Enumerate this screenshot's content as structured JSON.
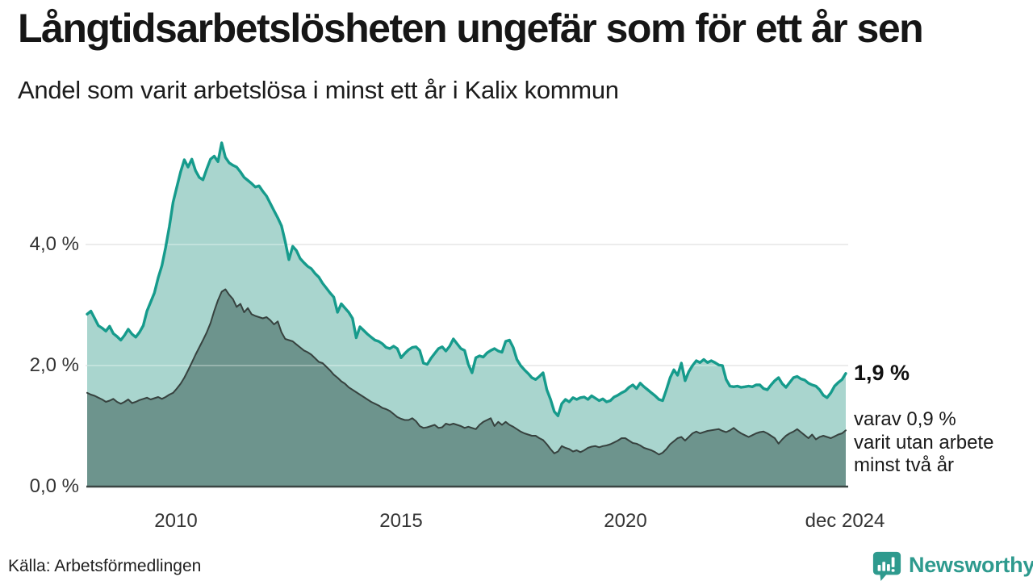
{
  "header": {
    "title": "Långtidsarbetslösheten ungefär som för ett år sen",
    "subtitle": "Andel som varit arbetslösa i minst ett år i Kalix kommun"
  },
  "annotation": {
    "value_label": "1,9 %",
    "detail_lines": [
      "varav 0,9 %",
      "varit utan arbete",
      "minst två år"
    ]
  },
  "source_note": "Källa: Arbetsförmedlingen",
  "logo": {
    "wordmark": "Newsworthy",
    "icon": "chart-speech-bubble-icon",
    "color": "#2e9a8e"
  },
  "chart_data": {
    "type": "area",
    "title": "Långtidsarbetslösheten ungefär som för ett år sen",
    "subtitle": "Andel som varit arbetslösa i minst ett år i Kalix kommun",
    "unit": "%",
    "freq": "monthly",
    "x_start": "2008-01",
    "x_end": "2024-12",
    "x_tick_labels": [
      "2010",
      "2015",
      "2020",
      "dec 2024"
    ],
    "y_tick_labels": [
      "0,0 %",
      "2,0 %",
      "4,0 %"
    ],
    "ylim": [
      0,
      5.9
    ],
    "grid": "horizontal",
    "legend": "none",
    "latest": {
      "total": "1,9 %",
      "two_years": "0,9 %"
    },
    "colors": {
      "total_line": "#169b8c",
      "total_fill": "#a9d5ce",
      "two_year_fill": "#6d948d",
      "two_year_line": "#37423f",
      "gridline": "#d9d9d9",
      "gridline_overlay": "rgba(255,255,255,0.40)",
      "axis_line": "#3a4543"
    },
    "series": [
      {
        "name": "Arbetslösa minst ett år",
        "values": [
          2.85,
          2.9,
          2.78,
          2.66,
          2.62,
          2.57,
          2.65,
          2.53,
          2.48,
          2.42,
          2.5,
          2.6,
          2.52,
          2.47,
          2.55,
          2.66,
          2.9,
          3.05,
          3.2,
          3.45,
          3.65,
          3.95,
          4.3,
          4.7,
          4.95,
          5.2,
          5.4,
          5.28,
          5.41,
          5.22,
          5.11,
          5.07,
          5.25,
          5.41,
          5.46,
          5.37,
          5.68,
          5.44,
          5.35,
          5.31,
          5.28,
          5.2,
          5.11,
          5.06,
          5.01,
          4.95,
          4.97,
          4.88,
          4.8,
          4.68,
          4.56,
          4.44,
          4.31,
          4.05,
          3.75,
          3.97,
          3.9,
          3.77,
          3.7,
          3.64,
          3.6,
          3.52,
          3.46,
          3.36,
          3.28,
          3.2,
          3.13,
          2.88,
          3.02,
          2.95,
          2.88,
          2.78,
          2.46,
          2.64,
          2.58,
          2.52,
          2.47,
          2.42,
          2.4,
          2.36,
          2.3,
          2.28,
          2.32,
          2.28,
          2.13,
          2.2,
          2.26,
          2.3,
          2.31,
          2.25,
          2.04,
          2.02,
          2.12,
          2.2,
          2.28,
          2.31,
          2.24,
          2.32,
          2.44,
          2.36,
          2.28,
          2.25,
          2.02,
          1.88,
          2.13,
          2.16,
          2.14,
          2.21,
          2.25,
          2.28,
          2.24,
          2.22,
          2.4,
          2.42,
          2.3,
          2.1,
          2.0,
          1.93,
          1.87,
          1.8,
          1.77,
          1.82,
          1.88,
          1.6,
          1.44,
          1.24,
          1.17,
          1.37,
          1.44,
          1.4,
          1.47,
          1.44,
          1.47,
          1.48,
          1.44,
          1.5,
          1.46,
          1.42,
          1.45,
          1.4,
          1.42,
          1.48,
          1.51,
          1.55,
          1.58,
          1.64,
          1.68,
          1.62,
          1.71,
          1.65,
          1.6,
          1.55,
          1.5,
          1.44,
          1.42,
          1.6,
          1.8,
          1.93,
          1.84,
          2.04,
          1.75,
          1.9,
          2.0,
          2.08,
          2.05,
          2.1,
          2.05,
          2.08,
          2.05,
          2.01,
          2.0,
          1.77,
          1.66,
          1.65,
          1.66,
          1.64,
          1.65,
          1.66,
          1.65,
          1.68,
          1.68,
          1.62,
          1.6,
          1.68,
          1.75,
          1.8,
          1.7,
          1.64,
          1.72,
          1.8,
          1.82,
          1.78,
          1.76,
          1.71,
          1.68,
          1.66,
          1.6,
          1.51,
          1.47,
          1.55,
          1.66,
          1.72,
          1.77,
          1.87
        ]
      },
      {
        "name": "Utan arbete minst två år",
        "values": [
          1.55,
          1.52,
          1.5,
          1.47,
          1.44,
          1.4,
          1.42,
          1.45,
          1.4,
          1.37,
          1.4,
          1.44,
          1.38,
          1.4,
          1.43,
          1.45,
          1.47,
          1.44,
          1.46,
          1.48,
          1.45,
          1.48,
          1.52,
          1.55,
          1.62,
          1.7,
          1.8,
          1.92,
          2.05,
          2.18,
          2.3,
          2.42,
          2.55,
          2.7,
          2.9,
          3.08,
          3.22,
          3.26,
          3.17,
          3.1,
          2.97,
          3.02,
          2.88,
          2.95,
          2.85,
          2.82,
          2.8,
          2.78,
          2.8,
          2.75,
          2.68,
          2.73,
          2.55,
          2.44,
          2.42,
          2.4,
          2.35,
          2.3,
          2.25,
          2.22,
          2.18,
          2.12,
          2.06,
          2.04,
          1.98,
          1.92,
          1.85,
          1.8,
          1.74,
          1.7,
          1.64,
          1.6,
          1.56,
          1.52,
          1.48,
          1.44,
          1.4,
          1.37,
          1.34,
          1.3,
          1.28,
          1.25,
          1.2,
          1.15,
          1.12,
          1.1,
          1.1,
          1.13,
          1.08,
          1.0,
          0.97,
          0.98,
          1.0,
          1.02,
          0.97,
          0.98,
          1.04,
          1.02,
          1.04,
          1.02,
          1.0,
          0.97,
          0.99,
          0.97,
          0.95,
          1.02,
          1.07,
          1.1,
          1.13,
          1.0,
          1.07,
          1.02,
          1.07,
          1.02,
          0.99,
          0.95,
          0.91,
          0.88,
          0.86,
          0.84,
          0.84,
          0.8,
          0.77,
          0.7,
          0.62,
          0.55,
          0.58,
          0.67,
          0.64,
          0.62,
          0.58,
          0.6,
          0.57,
          0.6,
          0.64,
          0.66,
          0.67,
          0.65,
          0.67,
          0.68,
          0.7,
          0.73,
          0.76,
          0.8,
          0.8,
          0.76,
          0.72,
          0.71,
          0.68,
          0.64,
          0.62,
          0.6,
          0.57,
          0.53,
          0.56,
          0.62,
          0.7,
          0.75,
          0.8,
          0.82,
          0.76,
          0.82,
          0.88,
          0.91,
          0.88,
          0.9,
          0.92,
          0.93,
          0.94,
          0.95,
          0.92,
          0.9,
          0.93,
          0.97,
          0.92,
          0.88,
          0.85,
          0.82,
          0.85,
          0.88,
          0.9,
          0.91,
          0.88,
          0.84,
          0.8,
          0.71,
          0.78,
          0.84,
          0.88,
          0.91,
          0.95,
          0.9,
          0.85,
          0.8,
          0.86,
          0.78,
          0.82,
          0.84,
          0.82,
          0.8,
          0.83,
          0.86,
          0.88,
          0.93
        ]
      }
    ]
  }
}
